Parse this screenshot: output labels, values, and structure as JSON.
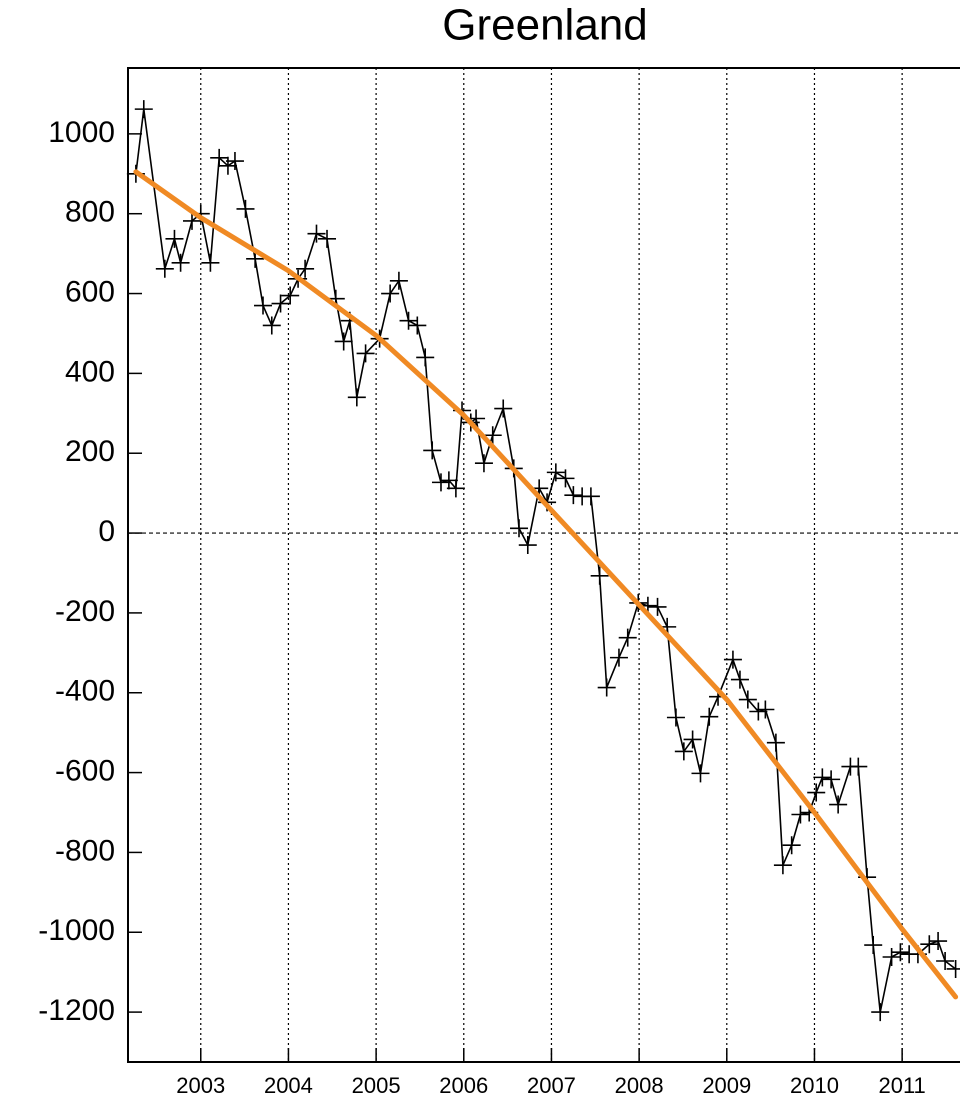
{
  "chart_data": {
    "type": "line",
    "title": "Greenland",
    "xlim": [
      2002.17,
      2011.66
    ],
    "ylim": [
      -1325,
      1165
    ],
    "xticks": [
      2003,
      2004,
      2005,
      2006,
      2007,
      2008,
      2009,
      2010,
      2011
    ],
    "yticks": [
      -1200,
      -1000,
      -800,
      -600,
      -400,
      -200,
      0,
      200,
      400,
      600,
      800,
      1000
    ],
    "xgrid": true,
    "zero_line": true,
    "series": [
      {
        "color": "#000000",
        "marker": "plus",
        "x": [
          2002.26,
          2002.35,
          2002.59,
          2002.7,
          2002.77,
          2002.9,
          2003.0,
          2003.11,
          2003.21,
          2003.31,
          2003.39,
          2003.51,
          2003.62,
          2003.71,
          2003.81,
          2003.91,
          2004.02,
          2004.11,
          2004.19,
          2004.32,
          2004.44,
          2004.54,
          2004.63,
          2004.7,
          2004.78,
          2004.88,
          2005.04,
          2005.16,
          2005.26,
          2005.37,
          2005.47,
          2005.56,
          2005.64,
          2005.74,
          2005.83,
          2005.91,
          2005.98,
          2006.08,
          2006.14,
          2006.23,
          2006.33,
          2006.45,
          2006.57,
          2006.63,
          2006.73,
          2006.86,
          2006.95,
          2007.05,
          2007.16,
          2007.25,
          2007.35,
          2007.45,
          2007.55,
          2007.63,
          2007.77,
          2007.87,
          2007.99,
          2008.1,
          2008.21,
          2008.32,
          2008.42,
          2008.51,
          2008.61,
          2008.7,
          2008.8,
          2008.9,
          2009.07,
          2009.15,
          2009.24,
          2009.36,
          2009.44,
          2009.56,
          2009.64,
          2009.74,
          2009.84,
          2009.94,
          2010.02,
          2010.09,
          2010.19,
          2010.27,
          2010.41,
          2010.5,
          2010.6,
          2010.67,
          2010.75,
          2010.88,
          2010.98,
          2011.08,
          2011.18,
          2011.31,
          2011.41,
          2011.49,
          2011.61
        ],
        "values": [
          900,
          1062,
          662,
          737,
          677,
          782,
          800,
          677,
          940,
          920,
          932,
          812,
          687,
          570,
          520,
          575,
          595,
          637,
          662,
          750,
          737,
          587,
          480,
          532,
          340,
          450,
          487,
          600,
          632,
          532,
          520,
          440,
          207,
          127,
          132,
          112,
          307,
          277,
          287,
          175,
          245,
          312,
          162,
          12,
          -30,
          112,
          77,
          152,
          137,
          95,
          92,
          92,
          -107,
          -387,
          -312,
          -262,
          -175,
          -182,
          -185,
          -235,
          -462,
          -547,
          -517,
          -602,
          -460,
          -410,
          -317,
          -367,
          -417,
          -447,
          -442,
          -525,
          -832,
          -782,
          -705,
          -700,
          -650,
          -612,
          -617,
          -680,
          -585,
          -585,
          -862,
          -1032,
          -1200,
          -1062,
          -1050,
          -1055,
          -1055,
          -1030,
          -1022,
          -1072,
          -1092
        ]
      },
      {
        "color": "#f08a24",
        "marker": "none",
        "x": [
          2002.26,
          2003,
          2004,
          2005,
          2006,
          2007,
          2008,
          2009,
          2010,
          2011,
          2011.61
        ],
        "values": [
          905,
          790,
          657,
          495,
          295,
          57,
          -180,
          -417,
          -700,
          -992,
          -1162
        ]
      }
    ]
  }
}
